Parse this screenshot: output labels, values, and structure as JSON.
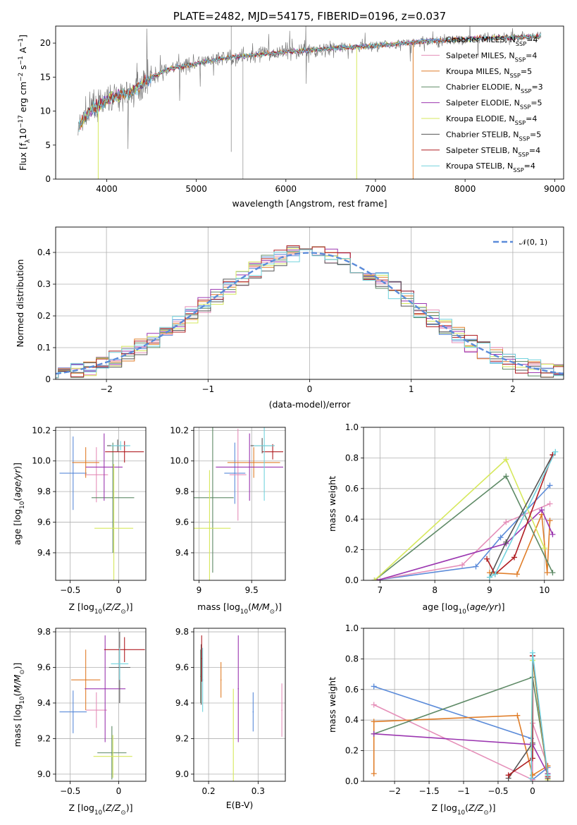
{
  "colors": {
    "Chabrier MILES": "#5b8bd9",
    "Salpeter MILES": "#e58fb9",
    "Kroupa MILES": "#e07e2a",
    "Chabrier ELODIE": "#5e8a66",
    "Salpeter ELODIE": "#9b36b0",
    "Kroupa ELODIE": "#d6e85c",
    "Chabrier STELIB": "#555555",
    "Salpeter STELIB": "#b01e22",
    "Kroupa STELIB": "#72d3de"
  },
  "chart_data": [
    {
      "id": "spectrum",
      "type": "line",
      "title": "PLATE=2482, MJD=54175, FIBERID=0196, z=0.037",
      "xlabel": "wavelength [Angstrom, rest frame]",
      "ylabel": "Flux [f_λ10^-17 erg cm^-2 s^-1 A^-1]",
      "xlim": [
        3430,
        9100
      ],
      "ylim": [
        0,
        22.5
      ],
      "xticks": [
        4000,
        5000,
        6000,
        7000,
        8000,
        9000
      ],
      "yticks": [
        0,
        5,
        10,
        15,
        20
      ],
      "grid": false,
      "legend_position": "top-right",
      "legend": [
        {
          "name": "Chabrier MILES",
          "nssp": "4"
        },
        {
          "name": "Salpeter MILES",
          "nssp": "4"
        },
        {
          "name": "Kroupa MILES",
          "nssp": "5"
        },
        {
          "name": "Chabrier ELODIE",
          "nssp": "3"
        },
        {
          "name": "Salpeter ELODIE",
          "nssp": "5"
        },
        {
          "name": "Kroupa ELODIE",
          "nssp": "4"
        },
        {
          "name": "Chabrier STELIB",
          "nssp": "5"
        },
        {
          "name": "Salpeter STELIB",
          "nssp": "4"
        },
        {
          "name": "Kroupa STELIB",
          "nssp": "4"
        }
      ],
      "continuum": [
        [
          3680,
          7.5
        ],
        [
          3750,
          9
        ],
        [
          3850,
          10.5
        ],
        [
          3950,
          11
        ],
        [
          4050,
          12
        ],
        [
          4200,
          12.5
        ],
        [
          4300,
          13
        ],
        [
          4500,
          15
        ],
        [
          4700,
          16.2
        ],
        [
          5000,
          17
        ],
        [
          5300,
          17.8
        ],
        [
          5600,
          18.2
        ],
        [
          6000,
          18.7
        ],
        [
          6500,
          19.2
        ],
        [
          7000,
          19.6
        ],
        [
          7500,
          20.2
        ],
        [
          8000,
          20.6
        ],
        [
          8500,
          20.8
        ],
        [
          8850,
          21
        ]
      ]
    },
    {
      "id": "residual-histogram",
      "type": "histogram",
      "xlabel": "(data-model)/error",
      "ylabel": "Normed distribution",
      "xlim": [
        -2.5,
        2.5
      ],
      "ylim": [
        0,
        0.48
      ],
      "xticks": [
        -2,
        -1,
        0,
        1,
        2
      ],
      "yticks": [
        0.0,
        0.1,
        0.2,
        0.3,
        0.4
      ],
      "grid": true,
      "legend": "𝒩(0, 1)",
      "legend_position": "top-right",
      "bin_width": 0.125
    },
    {
      "id": "age-vs-z",
      "type": "scatter",
      "xlabel": "Z [log10(Z/Z⊙)]",
      "ylabel": "age [log10(age/yr)]",
      "xlim": [
        -0.65,
        0.28
      ],
      "ylim": [
        9.22,
        10.22
      ],
      "xticks": [
        -0.5,
        0.0
      ],
      "yticks": [
        9.4,
        9.6,
        9.8,
        10.0,
        10.2
      ],
      "points": [
        {
          "s": "Chabrier MILES",
          "x": -0.47,
          "xerr": 0.14,
          "y": 9.92,
          "yerr": 0.24
        },
        {
          "s": "Salpeter MILES",
          "x": -0.23,
          "xerr": 0.12,
          "y": 9.91,
          "yerr": 0.18
        },
        {
          "s": "Kroupa MILES",
          "x": -0.34,
          "xerr": 0.14,
          "y": 9.99,
          "yerr": 0.1
        },
        {
          "s": "Chabrier ELODIE",
          "x": -0.06,
          "xerr": 0.22,
          "y": 9.76,
          "yerr": 0.36
        },
        {
          "s": "Salpeter ELODIE",
          "x": -0.15,
          "xerr": 0.19,
          "y": 9.96,
          "yerr": 0.22
        },
        {
          "s": "Kroupa ELODIE",
          "x": -0.05,
          "xerr": 0.2,
          "y": 9.56,
          "yerr": 0.42
        },
        {
          "s": "Chabrier STELIB",
          "x": -0.01,
          "xerr": 0.11,
          "y": 10.1,
          "yerr": 0.04
        },
        {
          "s": "Salpeter STELIB",
          "x": 0.06,
          "xerr": 0.2,
          "y": 10.06,
          "yerr": 0.07
        },
        {
          "s": "Kroupa STELIB",
          "x": 0.02,
          "xerr": 0.1,
          "y": 10.1,
          "yerr": 0.03
        }
      ]
    },
    {
      "id": "age-vs-mass",
      "type": "scatter",
      "xlabel": "mass [log10(M/M⊙)]",
      "ylabel": "",
      "xlim": [
        8.95,
        9.82
      ],
      "ylim": [
        9.22,
        10.22
      ],
      "xticks": [
        9.0,
        9.5
      ],
      "yticks": [
        9.4,
        9.6,
        9.8,
        10.0,
        10.2
      ],
      "points": [
        {
          "s": "Chabrier MILES",
          "x": 9.34,
          "xerr": 0.1,
          "y": 9.92,
          "yerr": 0.2
        },
        {
          "s": "Salpeter MILES",
          "x": 9.37,
          "xerr": 0.08,
          "y": 9.91,
          "yerr": 0.3
        },
        {
          "s": "Kroupa MILES",
          "x": 9.52,
          "xerr": 0.25,
          "y": 9.99,
          "yerr": 0.1
        },
        {
          "s": "Chabrier ELODIE",
          "x": 9.13,
          "xerr": 0.2,
          "y": 9.76,
          "yerr": 0.49
        },
        {
          "s": "Salpeter ELODIE",
          "x": 9.48,
          "xerr": 0.32,
          "y": 9.96,
          "yerr": 0.22
        },
        {
          "s": "Kroupa ELODIE",
          "x": 9.1,
          "xerr": 0.2,
          "y": 9.56,
          "yerr": 0.38
        },
        {
          "s": "Chabrier STELIB",
          "x": 9.6,
          "xerr": 0.11,
          "y": 10.1,
          "yerr": 0.05
        },
        {
          "s": "Salpeter STELIB",
          "x": 9.7,
          "xerr": 0.1,
          "y": 10.06,
          "yerr": 0.05
        },
        {
          "s": "Kroupa STELIB",
          "x": 9.62,
          "xerr": 0.1,
          "y": 10.1,
          "yerr": 0.36
        }
      ]
    },
    {
      "id": "mass-weight-vs-age",
      "type": "line",
      "xlabel": "age [log10(age/yr)]",
      "ylabel": "mass weight",
      "xlim": [
        6.7,
        10.35
      ],
      "ylim": [
        0.0,
        1.0
      ],
      "xticks": [
        7,
        8,
        9,
        10
      ],
      "yticks": [
        0.0,
        0.2,
        0.4,
        0.6,
        0.8,
        1.0
      ],
      "grid": true,
      "series": [
        {
          "s": "Chabrier MILES",
          "x": [
            6.9,
            8.75,
            9.2,
            10.1
          ],
          "y": [
            0.0,
            0.09,
            0.28,
            0.62
          ]
        },
        {
          "s": "Salpeter MILES",
          "x": [
            6.9,
            8.5,
            9.3,
            10.1
          ],
          "y": [
            0.0,
            0.1,
            0.38,
            0.5
          ]
        },
        {
          "s": "Kroupa MILES",
          "x": [
            9.0,
            9.5,
            9.95,
            10.05,
            10.1
          ],
          "y": [
            0.05,
            0.04,
            0.43,
            0.05,
            0.39
          ]
        },
        {
          "s": "Chabrier ELODIE",
          "x": [
            6.9,
            9.3,
            10.15
          ],
          "y": [
            0.0,
            0.68,
            0.05
          ]
        },
        {
          "s": "Salpeter ELODIE",
          "x": [
            6.95,
            9.3,
            9.95,
            10.15
          ],
          "y": [
            0.0,
            0.24,
            0.46,
            0.3
          ]
        },
        {
          "s": "Kroupa ELODIE",
          "x": [
            6.9,
            9.3,
            10.0
          ],
          "y": [
            0.0,
            0.79,
            0.21
          ]
        },
        {
          "s": "Chabrier STELIB",
          "x": [
            9.0,
            9.3,
            10.15
          ],
          "y": [
            0.02,
            0.25,
            0.82
          ]
        },
        {
          "s": "Salpeter STELIB",
          "x": [
            8.95,
            9.1,
            9.45,
            10.15
          ],
          "y": [
            0.14,
            0.04,
            0.15,
            0.82
          ]
        },
        {
          "s": "Kroupa STELIB",
          "x": [
            9.0,
            9.1,
            10.2
          ],
          "y": [
            0.02,
            0.04,
            0.84
          ]
        }
      ]
    },
    {
      "id": "mass-vs-z",
      "type": "scatter",
      "xlabel": "Z [log10(Z/Z⊙)]",
      "ylabel": "mass [log10(M/M⊙)]",
      "xlim": [
        -0.65,
        0.28
      ],
      "ylim": [
        8.96,
        9.82
      ],
      "xticks": [
        -0.5,
        0.0
      ],
      "yticks": [
        9.0,
        9.2,
        9.4,
        9.6,
        9.8
      ],
      "points": [
        {
          "s": "Chabrier MILES",
          "x": -0.47,
          "xerr": 0.14,
          "y": 9.35,
          "yerr": 0.12
        },
        {
          "s": "Salpeter MILES",
          "x": -0.23,
          "xerr": 0.11,
          "y": 9.36,
          "yerr": 0.1
        },
        {
          "s": "Kroupa MILES",
          "x": -0.34,
          "xerr": 0.15,
          "y": 9.53,
          "yerr": 0.17
        },
        {
          "s": "Chabrier ELODIE",
          "x": -0.07,
          "xerr": 0.15,
          "y": 9.12,
          "yerr": 0.15
        },
        {
          "s": "Salpeter ELODIE",
          "x": -0.14,
          "xerr": 0.21,
          "y": 9.48,
          "yerr": 0.3
        },
        {
          "s": "Kroupa ELODIE",
          "x": -0.06,
          "xerr": 0.2,
          "y": 9.1,
          "yerr": 0.12
        },
        {
          "s": "Chabrier STELIB",
          "x": 0.01,
          "xerr": 0.11,
          "y": 9.6,
          "yerr": 0.2
        },
        {
          "s": "Salpeter STELIB",
          "x": 0.06,
          "xerr": 0.21,
          "y": 9.7,
          "yerr": 0.07
        },
        {
          "s": "Kroupa STELIB",
          "x": 0.01,
          "xerr": 0.09,
          "y": 9.62,
          "yerr": 0.09
        }
      ]
    },
    {
      "id": "mass-vs-ebv",
      "type": "scatter",
      "xlabel": "E(B-V)",
      "ylabel": "",
      "xlim": [
        0.17,
        0.355
      ],
      "ylim": [
        8.96,
        9.82
      ],
      "xticks": [
        0.2,
        0.3
      ],
      "yticks": [
        9.0,
        9.2,
        9.4,
        9.6,
        9.8
      ],
      "points": [
        {
          "s": "Chabrier MILES",
          "x": 0.29,
          "y": 9.35,
          "yerr": 0.11
        },
        {
          "s": "Salpeter MILES",
          "x": 0.348,
          "y": 9.36,
          "yerr": 0.15
        },
        {
          "s": "Kroupa MILES",
          "x": 0.225,
          "y": 9.53,
          "yerr": 0.1
        },
        {
          "s": "Chabrier ELODIE",
          "x": 0.184,
          "y": 9.55,
          "yerr": 0.15
        },
        {
          "s": "Salpeter ELODIE",
          "x": 0.26,
          "y": 9.48,
          "yerr": 0.3
        },
        {
          "s": "Kroupa ELODIE",
          "x": 0.25,
          "y": 9.2,
          "yerr": 0.28
        },
        {
          "s": "Chabrier STELIB",
          "x": 0.185,
          "y": 9.56,
          "yerr": 0.17
        },
        {
          "s": "Salpeter STELIB",
          "x": 0.186,
          "y": 9.65,
          "yerr": 0.13
        },
        {
          "s": "Kroupa STELIB",
          "x": 0.188,
          "y": 9.53,
          "yerr": 0.18
        }
      ]
    },
    {
      "id": "mass-weight-vs-z",
      "type": "line",
      "xlabel": "Z [log10(Z/Z⊙)]",
      "ylabel": "mass weight",
      "xlim": [
        -2.45,
        0.45
      ],
      "ylim": [
        0.0,
        1.0
      ],
      "xticks": [
        -2.0,
        -1.5,
        -1.0,
        -0.5,
        0.0
      ],
      "yticks": [
        0.0,
        0.2,
        0.4,
        0.6,
        0.8,
        1.0
      ],
      "grid": true,
      "series": [
        {
          "s": "Chabrier MILES",
          "x": [
            -2.3,
            -0.02,
            0.0,
            0.22
          ],
          "y": [
            0.62,
            0.28,
            0.01,
            0.09
          ]
        },
        {
          "s": "Salpeter MILES",
          "x": [
            -2.3,
            0.0,
            0.0,
            0.22
          ],
          "y": [
            0.5,
            0.01,
            0.38,
            0.1
          ]
        },
        {
          "s": "Kroupa MILES",
          "x": [
            -2.3,
            -2.3,
            -0.22,
            0.0,
            0.22
          ],
          "y": [
            0.05,
            0.39,
            0.43,
            0.04,
            0.1
          ]
        },
        {
          "s": "Chabrier ELODIE",
          "x": [
            -2.3,
            0.0,
            0.22
          ],
          "y": [
            0.31,
            0.68,
            0.05
          ]
        },
        {
          "s": "Salpeter ELODIE",
          "x": [
            -2.3,
            0.0,
            0.22
          ],
          "y": [
            0.31,
            0.24,
            0.05
          ]
        },
        {
          "s": "Kroupa ELODIE",
          "x": [
            -0.02,
            0.0,
            0.22
          ],
          "y": [
            0.21,
            0.79,
            0.01
          ]
        },
        {
          "s": "Chabrier STELIB",
          "x": [
            -0.35,
            0.0,
            0.0,
            0.22
          ],
          "y": [
            0.02,
            0.25,
            0.82,
            0.02
          ]
        },
        {
          "s": "Salpeter STELIB",
          "x": [
            -0.35,
            0.0,
            0.0,
            0.22
          ],
          "y": [
            0.04,
            0.15,
            0.82,
            0.03
          ]
        },
        {
          "s": "Kroupa STELIB",
          "x": [
            -0.02,
            0.0,
            0.22
          ],
          "y": [
            0.02,
            0.84,
            0.04
          ]
        }
      ]
    }
  ]
}
